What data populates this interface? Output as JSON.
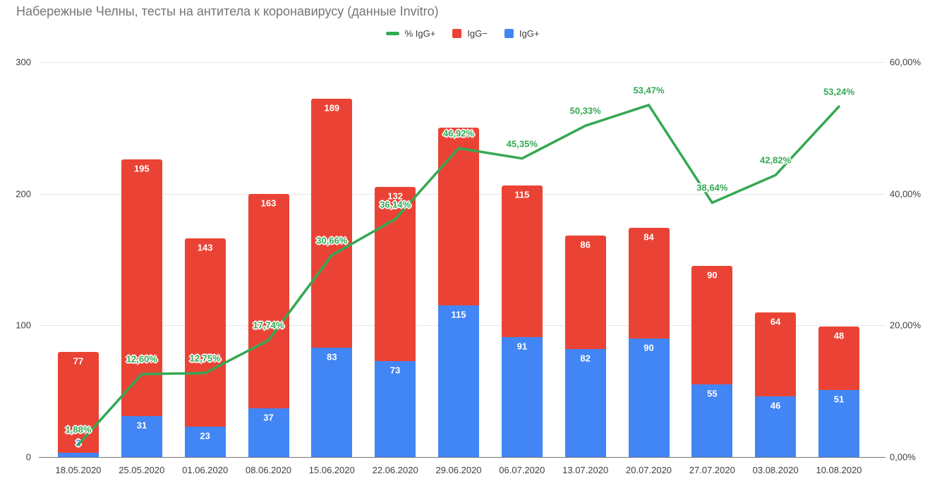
{
  "title": "Набережные Челны, тесты на антитела к коронавирусу (данные Invitro)",
  "colors": {
    "line_green": "#34a853",
    "bar_red": "#ea4335",
    "bar_blue": "#4285f4",
    "title_gray": "#757575",
    "axis_text": "#3c4043",
    "gridline": "#e6e6e6",
    "baseline": "#757575"
  },
  "legend": {
    "items": [
      {
        "label": "% IgG+",
        "type": "line",
        "color": "#34a853"
      },
      {
        "label": "IgG−",
        "type": "box",
        "color": "#ea4335"
      },
      {
        "label": "IgG+",
        "type": "box",
        "color": "#4285f4"
      }
    ]
  },
  "chart_data": {
    "type": "combo: stacked bar + line (dual axis)",
    "categories": [
      "18.05.2020",
      "25.05.2020",
      "01.06.2020",
      "08.06.2020",
      "15.06.2020",
      "22.06.2020",
      "29.06.2020",
      "06.07.2020",
      "13.07.2020",
      "20.07.2020",
      "27.07.2020",
      "03.08.2020",
      "10.08.2020"
    ],
    "series": [
      {
        "name": "IgG+",
        "type": "bar",
        "stack": "bottom",
        "axis": "left",
        "color": "#4285f4",
        "values": [
          3,
          31,
          23,
          37,
          83,
          73,
          115,
          91,
          82,
          90,
          55,
          46,
          51
        ],
        "outside_label_indexes": [
          0
        ]
      },
      {
        "name": "IgG−",
        "type": "bar",
        "stack": "top",
        "axis": "left",
        "color": "#ea4335",
        "values": [
          77,
          195,
          143,
          163,
          189,
          132,
          135,
          115,
          86,
          84,
          90,
          64,
          48
        ],
        "hidden_label_indexes": [
          6
        ]
      },
      {
        "name": "% IgG+",
        "type": "line",
        "axis": "right",
        "color": "#34a853",
        "values": [
          1.88,
          12.6,
          12.75,
          17.74,
          30.66,
          36.14,
          46.92,
          45.35,
          50.33,
          53.47,
          38.64,
          42.82,
          53.24
        ],
        "labels": [
          "1,88%",
          "12,60%",
          "12,75%",
          "17,74%",
          "30,66%",
          "36,14%",
          "46,92%",
          "45,35%",
          "50,33%",
          "53,47%",
          "38,64%",
          "42,82%",
          "53,24%"
        ]
      }
    ],
    "left_axis": {
      "min": 0,
      "max": 300,
      "tick_values": [
        0,
        100,
        200,
        300
      ],
      "tick_labels": [
        "0",
        "100",
        "200",
        "300"
      ]
    },
    "right_axis": {
      "min": 0,
      "max": 60,
      "tick_values": [
        0,
        20,
        40,
        60
      ],
      "tick_labels": [
        "0,00%",
        "20,00%",
        "40,00%",
        "60,00%"
      ]
    },
    "grid": true,
    "legend_position": "top-center"
  }
}
